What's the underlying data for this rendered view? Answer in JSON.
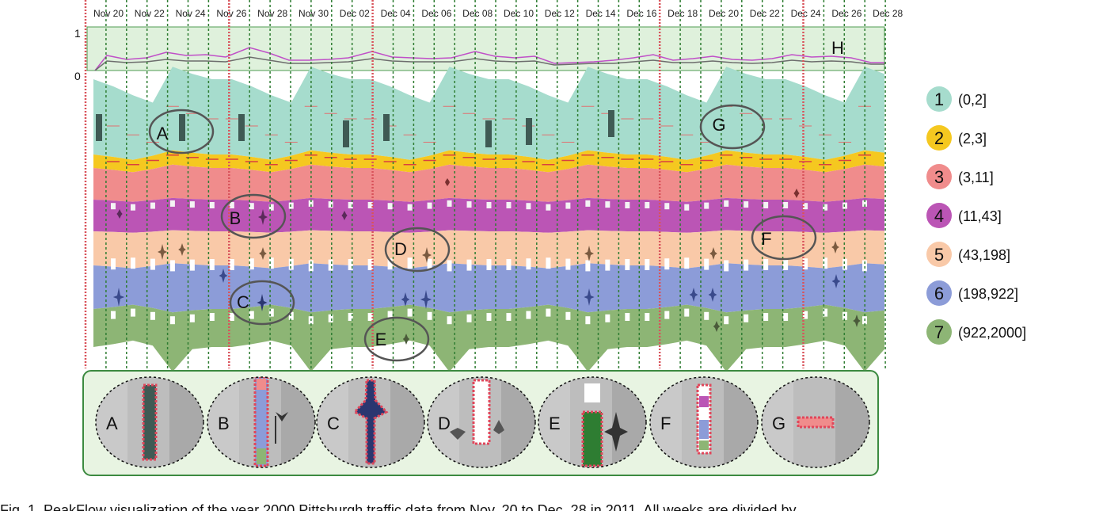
{
  "dates": [
    "Nov 20",
    "Nov 22",
    "Nov 24",
    "Nov 26",
    "Nov 28",
    "Nov 30",
    "Dec 02",
    "Dec 04",
    "Dec 06",
    "Dec 08",
    "Dec 10",
    "Dec 12",
    "Dec 14",
    "Dec 16",
    "Dec 18",
    "Dec 20",
    "Dec 22",
    "Dec 24",
    "Dec 26",
    "Dec 28"
  ],
  "overview": {
    "y_max": "1",
    "y_min": "0",
    "callout": "H"
  },
  "callouts": [
    "A",
    "B",
    "C",
    "D",
    "E",
    "F",
    "G"
  ],
  "legend": [
    {
      "num": "1",
      "range": "(0,2]",
      "color": "#a6dccd"
    },
    {
      "num": "2",
      "range": "(2,3]",
      "color": "#f5c820"
    },
    {
      "num": "3",
      "range": "(3,11]",
      "color": "#f08c8c"
    },
    {
      "num": "4",
      "range": "(11,43]",
      "color": "#bb55b5"
    },
    {
      "num": "5",
      "range": "(43,198]",
      "color": "#f9c9a8"
    },
    {
      "num": "6",
      "range": "(198,922]",
      "color": "#8c9cd8"
    },
    {
      "num": "7",
      "range": "(922,2000]",
      "color": "#8db575"
    }
  ],
  "zoom_labels": [
    "A",
    "B",
    "C",
    "D",
    "E",
    "F",
    "G"
  ],
  "caption": "Fig. 1. PeakFlow visualization of the year 2000 Pittsburgh traffic data from Nov. 20 to Dec. 28 in 2011. All weeks are divided by"
}
